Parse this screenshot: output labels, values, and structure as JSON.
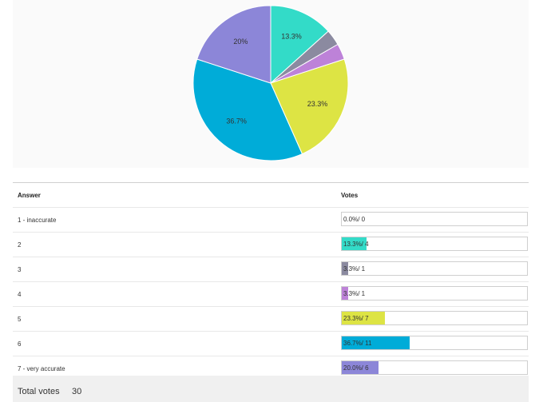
{
  "chart_data": {
    "type": "pie",
    "slices": [
      {
        "label": "1 - inaccurate",
        "value": 0,
        "percent_label": "",
        "color": "#cccccc"
      },
      {
        "label": "2",
        "value": 4,
        "percent_label": "13.3%",
        "color": "#33dbc8"
      },
      {
        "label": "3",
        "value": 1,
        "percent_label": "",
        "color": "#8b8aa0"
      },
      {
        "label": "4",
        "value": 1,
        "percent_label": "",
        "color": "#bd82d8"
      },
      {
        "label": "5",
        "value": 7,
        "percent_label": "23.3%",
        "color": "#dde444"
      },
      {
        "label": "6",
        "value": 11,
        "percent_label": "36.7%",
        "color": "#00acd8"
      },
      {
        "label": "7 - very accurate",
        "value": 6,
        "percent_label": "20%",
        "color": "#8c86d8"
      }
    ]
  },
  "table": {
    "header_answer": "Answer",
    "header_votes": "Votes",
    "rows": [
      {
        "answer": "1 - inaccurate",
        "votes_text": "0.0%/ 0",
        "fraction": 0.0,
        "color": "#cccccc"
      },
      {
        "answer": "2",
        "votes_text": "13.3%/ 4",
        "fraction": 0.133,
        "color": "#33dbc8"
      },
      {
        "answer": "3",
        "votes_text": "3.3%/ 1",
        "fraction": 0.033,
        "color": "#8b8aa0"
      },
      {
        "answer": "4",
        "votes_text": "3.3%/ 1",
        "fraction": 0.033,
        "color": "#bd82d8"
      },
      {
        "answer": "5",
        "votes_text": "23.3%/ 7",
        "fraction": 0.233,
        "color": "#dde444"
      },
      {
        "answer": "6",
        "votes_text": "36.7%/ 11",
        "fraction": 0.367,
        "color": "#00acd8"
      },
      {
        "answer": "7 - very accurate",
        "votes_text": "20.0%/ 6",
        "fraction": 0.2,
        "color": "#8c86d8"
      }
    ]
  },
  "total": {
    "label": "Total votes",
    "value": "30"
  }
}
